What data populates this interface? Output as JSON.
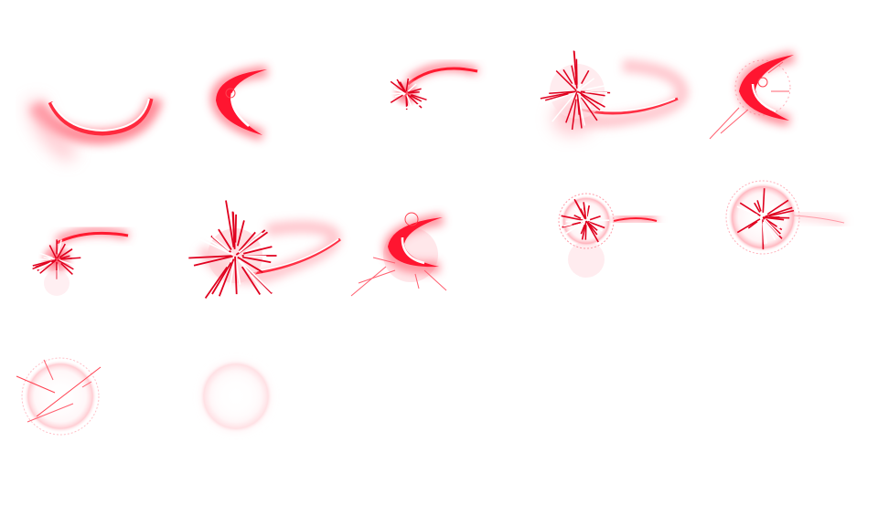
{
  "sprite_sheet": {
    "effect": "red-slash-burst",
    "columns": 5,
    "rows": 3,
    "frame_count": 12,
    "colors": {
      "core": "#ff0020",
      "glow": "#ff6b7a",
      "soft": "#ffd0d6",
      "highlight": "#ffffff",
      "background": "#ffffff"
    },
    "frames": [
      {
        "id": 1,
        "stage": "arc-wide"
      },
      {
        "id": 2,
        "stage": "crescent"
      },
      {
        "id": 3,
        "stage": "arc-with-small-burst"
      },
      {
        "id": 4,
        "stage": "arc-with-burst"
      },
      {
        "id": 5,
        "stage": "crescent-with-rays"
      },
      {
        "id": 6,
        "stage": "arc-with-small-burst"
      },
      {
        "id": 7,
        "stage": "arc-with-large-burst"
      },
      {
        "id": 8,
        "stage": "crescent-with-rays"
      },
      {
        "id": 9,
        "stage": "burst-ring-with-tail"
      },
      {
        "id": 10,
        "stage": "burst-ring-with-tail"
      },
      {
        "id": 11,
        "stage": "fading-ring-with-rays"
      },
      {
        "id": 12,
        "stage": "faded-ring"
      }
    ]
  }
}
